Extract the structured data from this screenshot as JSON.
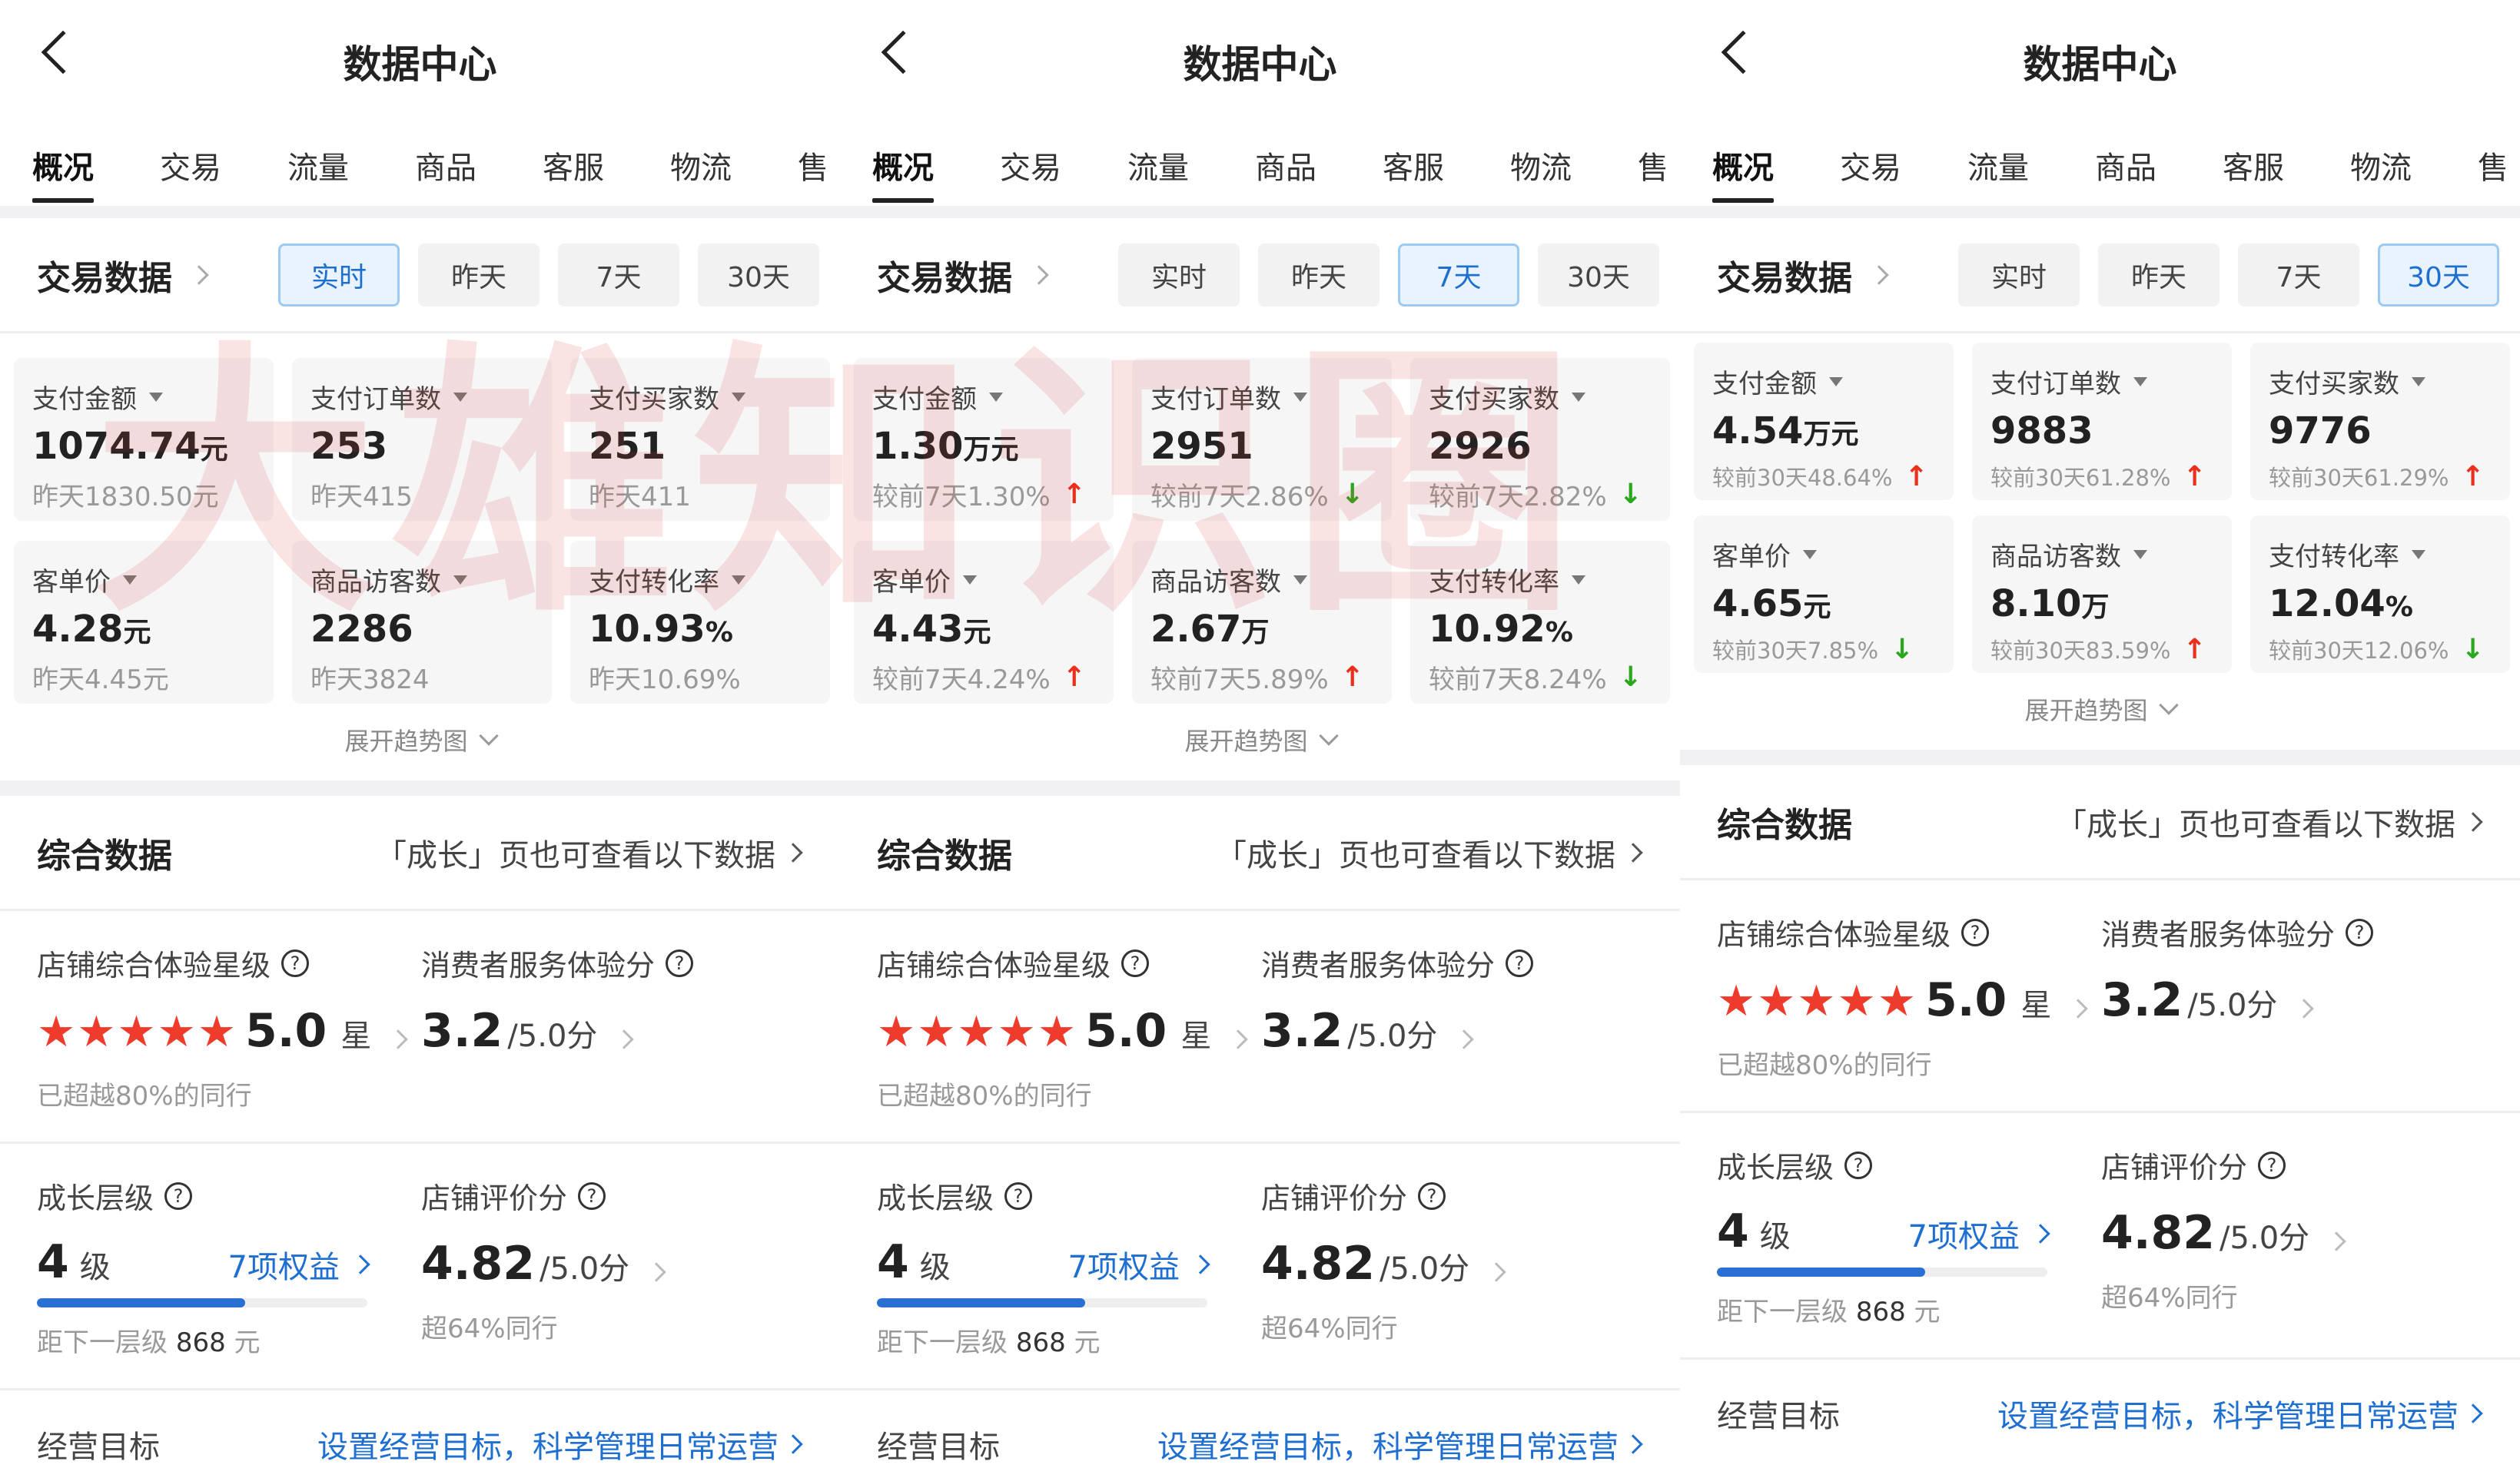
{
  "watermark": "大雄知识圈",
  "colors": {
    "accent_blue": "#1f6fd1",
    "up_red": "#e8301c",
    "down_green": "#2aa81d",
    "star_red": "#ee3b2b"
  },
  "panels": [
    {
      "title": "数据中心",
      "tabs": [
        "概况",
        "交易",
        "流量",
        "商品",
        "客服",
        "物流",
        "售"
      ],
      "active_tab": 0,
      "trade_title": "交易数据",
      "ranges": [
        "实时",
        "昨天",
        "7天",
        "30天"
      ],
      "selected_range": 0,
      "metrics": [
        {
          "label": "支付金额",
          "value": "1074.74",
          "unit": "元",
          "compare": "昨天1830.50元",
          "trend": ""
        },
        {
          "label": "支付订单数",
          "value": "253",
          "unit": "",
          "compare": "昨天415",
          "trend": ""
        },
        {
          "label": "支付买家数",
          "value": "251",
          "unit": "",
          "compare": "昨天411",
          "trend": ""
        },
        {
          "label": "客单价",
          "value": "4.28",
          "unit": "元",
          "compare": "昨天4.45元",
          "trend": ""
        },
        {
          "label": "商品访客数",
          "value": "2286",
          "unit": "",
          "compare": "昨天3824",
          "trend": ""
        },
        {
          "label": "支付转化率",
          "value": "10.93",
          "unit": "%",
          "compare": "昨天10.69%",
          "trend": ""
        }
      ],
      "expand": "展开趋势图",
      "overall_title": "综合数据",
      "overall_link": "「成长」页也可查看以下数据",
      "star_label": "店铺综合体验星级",
      "star_value": "5.0",
      "star_unit": "星",
      "star_count": 5,
      "star_sub": "已超越80%的同行",
      "service_label": "消费者服务体验分",
      "service_value": "3.2",
      "service_unit": "/5.0分",
      "level_label": "成长层级",
      "level_value": "4",
      "level_unit": "级",
      "level_rights": "7项权益",
      "level_progress": 0.63,
      "level_sub_prefix": "距下一层级",
      "level_sub_amount": "868",
      "level_sub_unit": "元",
      "review_label": "店铺评价分",
      "review_value": "4.82",
      "review_unit": "/5.0分",
      "review_sub": "超64%同行",
      "goal_label": "经营目标",
      "goal_link": "设置经营目标，科学管理日常运营"
    },
    {
      "title": "数据中心",
      "tabs": [
        "概况",
        "交易",
        "流量",
        "商品",
        "客服",
        "物流",
        "售"
      ],
      "active_tab": 0,
      "trade_title": "交易数据",
      "ranges": [
        "实时",
        "昨天",
        "7天",
        "30天"
      ],
      "selected_range": 2,
      "metrics": [
        {
          "label": "支付金额",
          "value": "1.30",
          "unit": "万元",
          "compare": "较前7天1.30%",
          "trend": "up"
        },
        {
          "label": "支付订单数",
          "value": "2951",
          "unit": "",
          "compare": "较前7天2.86%",
          "trend": "down"
        },
        {
          "label": "支付买家数",
          "value": "2926",
          "unit": "",
          "compare": "较前7天2.82%",
          "trend": "down"
        },
        {
          "label": "客单价",
          "value": "4.43",
          "unit": "元",
          "compare": "较前7天4.24%",
          "trend": "up"
        },
        {
          "label": "商品访客数",
          "value": "2.67",
          "unit": "万",
          "compare": "较前7天5.89%",
          "trend": "up"
        },
        {
          "label": "支付转化率",
          "value": "10.92",
          "unit": "%",
          "compare": "较前7天8.24%",
          "trend": "down"
        }
      ],
      "expand": "展开趋势图",
      "overall_title": "综合数据",
      "overall_link": "「成长」页也可查看以下数据",
      "star_label": "店铺综合体验星级",
      "star_value": "5.0",
      "star_unit": "星",
      "star_count": 5,
      "star_sub": "已超越80%的同行",
      "service_label": "消费者服务体验分",
      "service_value": "3.2",
      "service_unit": "/5.0分",
      "level_label": "成长层级",
      "level_value": "4",
      "level_unit": "级",
      "level_rights": "7项权益",
      "level_progress": 0.63,
      "level_sub_prefix": "距下一层级",
      "level_sub_amount": "868",
      "level_sub_unit": "元",
      "review_label": "店铺评价分",
      "review_value": "4.82",
      "review_unit": "/5.0分",
      "review_sub": "超64%同行",
      "goal_label": "经营目标",
      "goal_link": "设置经营目标，科学管理日常运营"
    },
    {
      "title": "数据中心",
      "tabs": [
        "概况",
        "交易",
        "流量",
        "商品",
        "客服",
        "物流",
        "售"
      ],
      "active_tab": 0,
      "trade_title": "交易数据",
      "ranges": [
        "实时",
        "昨天",
        "7天",
        "30天"
      ],
      "selected_range": 3,
      "metrics": [
        {
          "label": "支付金额",
          "value": "4.54",
          "unit": "万元",
          "compare": "较前30天48.64%",
          "trend": "up"
        },
        {
          "label": "支付订单数",
          "value": "9883",
          "unit": "",
          "compare": "较前30天61.28%",
          "trend": "up"
        },
        {
          "label": "支付买家数",
          "value": "9776",
          "unit": "",
          "compare": "较前30天61.29%",
          "trend": "up"
        },
        {
          "label": "客单价",
          "value": "4.65",
          "unit": "元",
          "compare": "较前30天7.85%",
          "trend": "down"
        },
        {
          "label": "商品访客数",
          "value": "8.10",
          "unit": "万",
          "compare": "较前30天83.59%",
          "trend": "up"
        },
        {
          "label": "支付转化率",
          "value": "12.04",
          "unit": "%",
          "compare": "较前30天12.06%",
          "trend": "down"
        }
      ],
      "expand": "展开趋势图",
      "overall_title": "综合数据",
      "overall_link": "「成长」页也可查看以下数据",
      "star_label": "店铺综合体验星级",
      "star_value": "5.0",
      "star_unit": "星",
      "star_count": 5,
      "star_sub": "已超越80%的同行",
      "service_label": "消费者服务体验分",
      "service_value": "3.2",
      "service_unit": "/5.0分",
      "level_label": "成长层级",
      "level_value": "4",
      "level_unit": "级",
      "level_rights": "7项权益",
      "level_progress": 0.63,
      "level_sub_prefix": "距下一层级",
      "level_sub_amount": "868",
      "level_sub_unit": "元",
      "review_label": "店铺评价分",
      "review_value": "4.82",
      "review_unit": "/5.0分",
      "review_sub": "超64%同行",
      "goal_label": "经营目标",
      "goal_link": "设置经营目标，科学管理日常运营"
    }
  ]
}
